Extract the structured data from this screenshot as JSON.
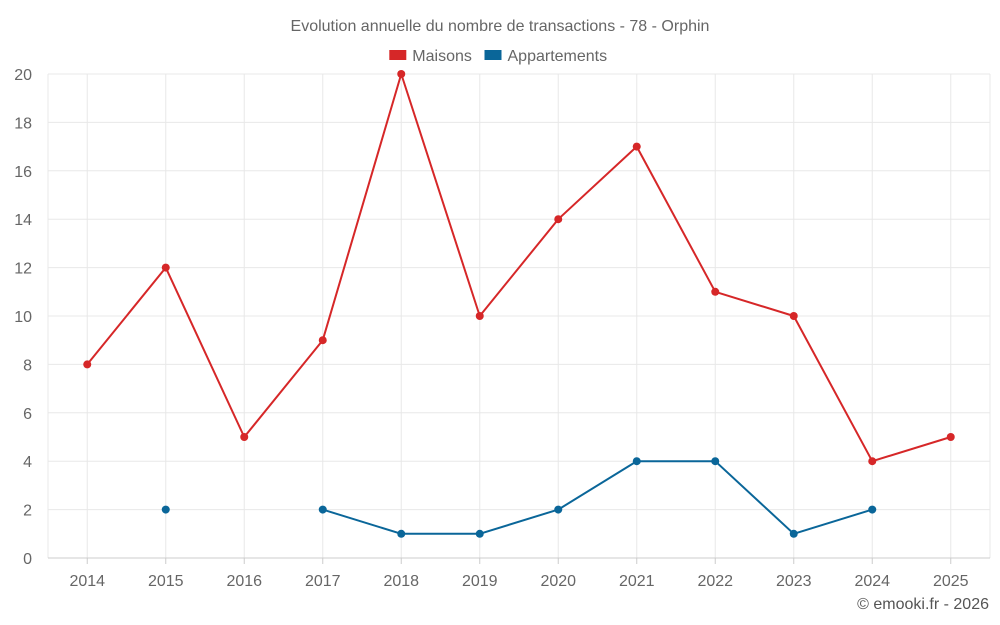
{
  "chart_data": {
    "type": "line",
    "title": "Evolution annuelle du nombre de transactions - 78 - Orphin",
    "categories": [
      "2014",
      "2015",
      "2016",
      "2017",
      "2018",
      "2019",
      "2020",
      "2021",
      "2022",
      "2023",
      "2024",
      "2025"
    ],
    "series": [
      {
        "name": "Maisons",
        "color": "#d62728",
        "values": [
          8,
          12,
          5,
          9,
          20,
          10,
          14,
          17,
          11,
          10,
          4,
          5
        ]
      },
      {
        "name": "Appartements",
        "color": "#0a6699",
        "values": [
          null,
          2,
          null,
          2,
          1,
          1,
          2,
          4,
          4,
          1,
          2,
          null
        ]
      }
    ],
    "ylim": [
      0,
      20
    ],
    "yticks": [
      "0",
      "2",
      "4",
      "6",
      "8",
      "10",
      "12",
      "14",
      "16",
      "18",
      "20"
    ],
    "xlabel": "",
    "ylabel": "",
    "grid": true,
    "legend_position": "top-center"
  },
  "credit": "© emooki.fr - 2026"
}
